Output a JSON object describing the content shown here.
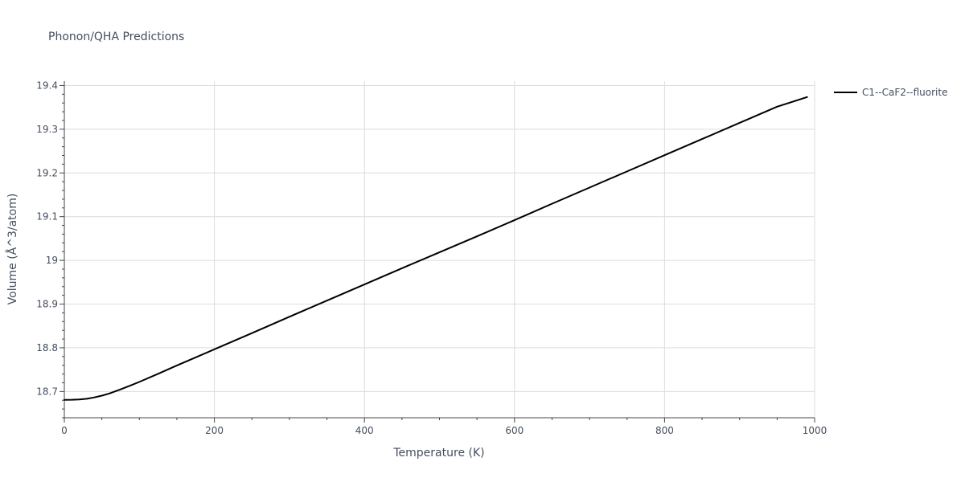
{
  "chart_data": {
    "type": "line",
    "title": "Phonon/QHA Predictions",
    "xlabel": "Temperature (K)",
    "ylabel": "Volume (Å^3/atom)",
    "xlim": [
      0,
      1000
    ],
    "ylim": [
      18.64,
      19.41
    ],
    "xticks": [
      0,
      200,
      400,
      600,
      800,
      1000
    ],
    "xtick_labels": [
      "0",
      "200",
      "400",
      "600",
      "800",
      "1000"
    ],
    "xminor_step": 50,
    "yticks": [
      18.7,
      18.8,
      18.9,
      19.0,
      19.1,
      19.2,
      19.3,
      19.4
    ],
    "ytick_labels": [
      "18.7",
      "18.8",
      "18.9",
      "19",
      "19.1",
      "19.2",
      "19.3",
      "19.4"
    ],
    "yminor_step": 0.02,
    "grid": true,
    "legend_position": "top-right, outside plot",
    "series": [
      {
        "name": "C1--CaF2--fluorite",
        "color": "#000000",
        "x": [
          0,
          10,
          20,
          30,
          40,
          50,
          60,
          75,
          90,
          100,
          125,
          150,
          175,
          200,
          250,
          300,
          350,
          400,
          450,
          500,
          550,
          600,
          650,
          700,
          750,
          800,
          850,
          900,
          950,
          990
        ],
        "y": [
          18.681,
          18.6812,
          18.6818,
          18.6835,
          18.6865,
          18.6905,
          18.6955,
          18.705,
          18.715,
          18.722,
          18.7405,
          18.7595,
          18.778,
          18.7965,
          18.8335,
          18.871,
          18.908,
          18.945,
          18.982,
          19.0185,
          19.055,
          19.092,
          19.1295,
          19.1665,
          19.2035,
          19.2405,
          19.2775,
          19.3145,
          19.3515,
          19.3735
        ]
      }
    ]
  }
}
